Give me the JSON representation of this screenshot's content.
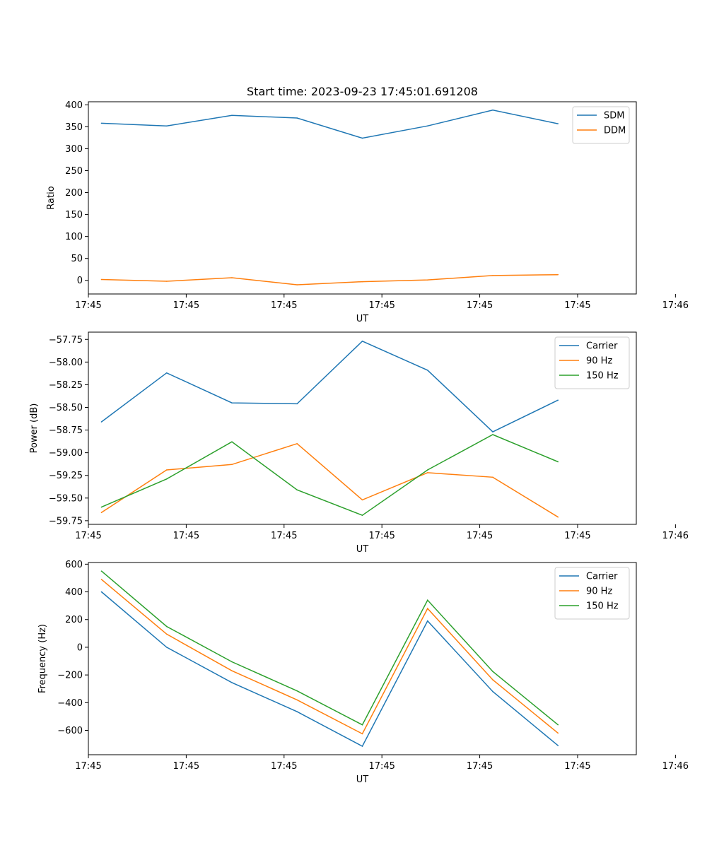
{
  "chart_data": [
    {
      "type": "line",
      "title": "Start time: 2023-09-23 17:45:01.691208",
      "xlabel": "UT",
      "ylabel": "Ratio",
      "x": [
        1,
        2,
        3,
        4,
        5,
        6,
        7,
        8
      ],
      "xlim": [
        0.8,
        9.2
      ],
      "xticks": [
        1,
        2.5,
        4,
        5.5,
        7,
        8.5
      ],
      "xtick_positions": [
        0.8,
        2.3,
        3.8,
        5.3,
        6.8,
        8.3,
        9.8
      ],
      "xtick_labels": [
        "17:45",
        "17:45",
        "17:45",
        "17:45",
        "17:45",
        "17:45",
        "17:46"
      ],
      "ylim": [
        -31,
        407
      ],
      "yticks": [
        0,
        50,
        100,
        150,
        200,
        250,
        300,
        350,
        400
      ],
      "ytick_labels": [
        "0",
        "50",
        "100",
        "150",
        "200",
        "250",
        "300",
        "350",
        "400"
      ],
      "legend": "top-right",
      "series": [
        {
          "name": "SDM",
          "color": "#1f77b4",
          "values": [
            358,
            352,
            376,
            370,
            324,
            352,
            388,
            357
          ]
        },
        {
          "name": "DDM",
          "color": "#ff7f0e",
          "values": [
            2,
            -2,
            6,
            -10,
            -3,
            1,
            11,
            13
          ]
        }
      ]
    },
    {
      "type": "line",
      "title": "",
      "xlabel": "UT",
      "ylabel": "Power (dB)",
      "x": [
        1,
        2,
        3,
        4,
        5,
        6,
        7,
        8
      ],
      "xlim": [
        0.8,
        9.2
      ],
      "xtick_positions": [
        0.8,
        2.3,
        3.8,
        5.3,
        6.8,
        8.3,
        9.8
      ],
      "xtick_labels": [
        "17:45",
        "17:45",
        "17:45",
        "17:45",
        "17:45",
        "17:45",
        "17:46"
      ],
      "ylim": [
        -59.79,
        -57.67
      ],
      "yticks": [
        -59.75,
        -59.5,
        -59.25,
        -59.0,
        -58.75,
        -58.5,
        -58.25,
        -58.0,
        -57.75
      ],
      "ytick_labels": [
        "−59.75",
        "−59.50",
        "−59.25",
        "−59.00",
        "−58.75",
        "−58.50",
        "−58.25",
        "−58.00",
        "−57.75"
      ],
      "legend": "top-right",
      "series": [
        {
          "name": "Carrier",
          "color": "#1f77b4",
          "values": [
            -58.66,
            -58.12,
            -58.45,
            -58.46,
            -57.77,
            -58.09,
            -58.77,
            -58.42
          ]
        },
        {
          "name": "90 Hz",
          "color": "#ff7f0e",
          "values": [
            -59.66,
            -59.19,
            -59.13,
            -58.9,
            -59.52,
            -59.22,
            -59.27,
            -59.71
          ]
        },
        {
          "name": "150 Hz",
          "color": "#2ca02c",
          "values": [
            -59.6,
            -59.29,
            -58.88,
            -59.41,
            -59.69,
            -59.19,
            -58.8,
            -59.1
          ]
        }
      ]
    },
    {
      "type": "line",
      "title": "",
      "xlabel": "UT",
      "ylabel": "Frequency (Hz)",
      "x": [
        1,
        2,
        3,
        4,
        5,
        6,
        7,
        8
      ],
      "xlim": [
        0.8,
        9.2
      ],
      "xtick_positions": [
        0.8,
        2.3,
        3.8,
        5.3,
        6.8,
        8.3,
        9.8
      ],
      "xtick_labels": [
        "17:45",
        "17:45",
        "17:45",
        "17:45",
        "17:45",
        "17:45",
        "17:46"
      ],
      "ylim": [
        -776,
        612
      ],
      "yticks": [
        -600,
        -400,
        -200,
        0,
        200,
        400,
        600
      ],
      "ytick_labels": [
        "−600",
        "−400",
        "−200",
        "0",
        "200",
        "400",
        "600"
      ],
      "legend": "top-right",
      "series": [
        {
          "name": "Carrier",
          "color": "#1f77b4",
          "values": [
            400,
            0,
            -255,
            -465,
            -715,
            190,
            -320,
            -710
          ]
        },
        {
          "name": "90 Hz",
          "color": "#ff7f0e",
          "values": [
            490,
            95,
            -170,
            -380,
            -625,
            280,
            -235,
            -620
          ]
        },
        {
          "name": "150 Hz",
          "color": "#2ca02c",
          "values": [
            550,
            150,
            -105,
            -315,
            -560,
            340,
            -175,
            -560
          ]
        }
      ]
    }
  ]
}
